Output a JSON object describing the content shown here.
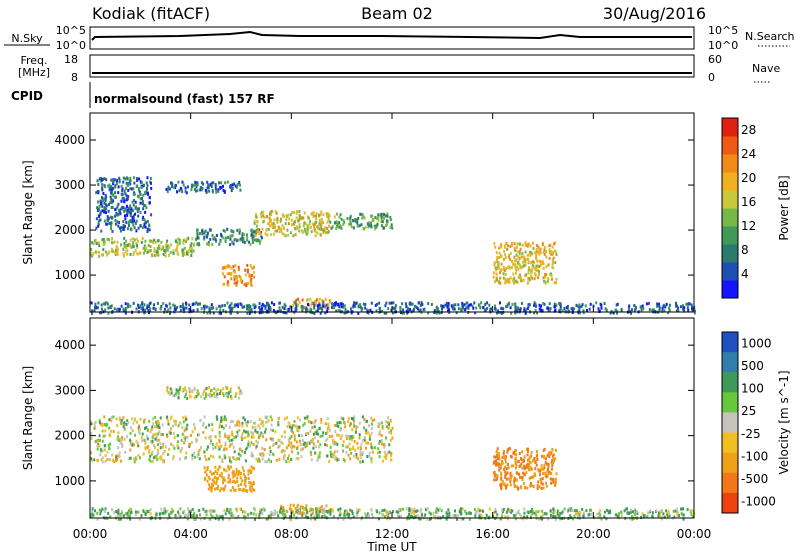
{
  "header": {
    "station": "Kodiak (fitACF)",
    "beam": "Beam 02",
    "date": "30/Aug/2016"
  },
  "top_panels": {
    "nsky_label": "N.Sky",
    "nsky_ticks": [
      "10^5",
      "10^0"
    ],
    "nsearch_label": "N.Search",
    "nsearch_ticks": [
      "10^5",
      "10^0"
    ],
    "freq_label": "Freq.",
    "freq_unit": "[MHz]",
    "freq_ticks": [
      "18",
      "8"
    ],
    "nave_label": "Nave",
    "nave_ticks": [
      "60",
      "0"
    ],
    "cpid_label": "CPID",
    "cpid_value": "normalsound (fast) 157 RF"
  },
  "chart_data": [
    {
      "type": "heatmap",
      "parameter": "power",
      "ylabel": "Slant Range [km]",
      "yticks": [
        1000,
        2000,
        3000,
        4000
      ],
      "ylim": [
        180,
        4600
      ],
      "xlabel": "Time UT",
      "xticks": [
        "00:00",
        "04:00",
        "08:00",
        "12:00",
        "16:00",
        "20:00",
        "00:00"
      ],
      "xlim_hours": [
        0,
        24
      ],
      "colorbar": {
        "label": "Power [dB]",
        "ticks": [
          "4",
          "8",
          "12",
          "16",
          "20",
          "24",
          "28"
        ],
        "range": [
          0,
          30
        ],
        "colors": [
          "#1414ff",
          "#1f4fb5",
          "#2b7a6e",
          "#3f9a5a",
          "#77b84a",
          "#c8c83a",
          "#f0b020",
          "#f28a18",
          "#ee5a14",
          "#e02010"
        ]
      },
      "regions": [
        {
          "t0": 0.0,
          "t1": 4.2,
          "r0": 1450,
          "r1": 1850,
          "power": 15
        },
        {
          "t0": 4.2,
          "t1": 6.8,
          "r0": 1700,
          "r1": 2050,
          "power": 9
        },
        {
          "t0": 6.5,
          "t1": 9.5,
          "r0": 1900,
          "r1": 2450,
          "power": 17
        },
        {
          "t0": 9.5,
          "t1": 12.0,
          "r0": 2050,
          "r1": 2400,
          "power": 11
        },
        {
          "t0": 0.2,
          "t1": 2.4,
          "r0": 2000,
          "r1": 3200,
          "power": 6
        },
        {
          "t0": 3.0,
          "t1": 6.0,
          "r0": 2850,
          "r1": 3100,
          "power": 6
        },
        {
          "t0": 5.2,
          "t1": 6.5,
          "r0": 800,
          "r1": 1250,
          "power": 22
        },
        {
          "t0": 8.0,
          "t1": 9.6,
          "r0": 300,
          "r1": 500,
          "power": 20
        },
        {
          "t0": 16.0,
          "t1": 18.5,
          "r0": 850,
          "r1": 1750,
          "power": 18
        },
        {
          "t0": 0.0,
          "t1": 24.0,
          "r0": 180,
          "r1": 420,
          "power": 6
        }
      ]
    },
    {
      "type": "heatmap",
      "parameter": "velocity",
      "ylabel": "Slant Range [km]",
      "yticks": [
        1000,
        2000,
        3000,
        4000
      ],
      "ylim": [
        180,
        4600
      ],
      "xlabel": "Time UT",
      "xticks": [
        "00:00",
        "04:00",
        "08:00",
        "12:00",
        "16:00",
        "20:00",
        "00:00"
      ],
      "xlim_hours": [
        0,
        24
      ],
      "colorbar": {
        "label": "Velocity [m s^-1]",
        "ticks": [
          "1000",
          "500",
          "100",
          "25",
          "-25",
          "-100",
          "-500",
          "-1000"
        ],
        "colors": [
          "#2050c0",
          "#2f7fa8",
          "#3f9a5a",
          "#66c83c",
          "#c4c4bc",
          "#f0c020",
          "#f0a018",
          "#f07818",
          "#ee4010"
        ]
      },
      "regions": [
        {
          "t0": 0.0,
          "t1": 12.0,
          "r0": 1450,
          "r1": 2450,
          "velocity": 0
        },
        {
          "t0": 3.0,
          "t1": 6.0,
          "r0": 2850,
          "r1": 3100,
          "velocity": 0
        },
        {
          "t0": 4.5,
          "t1": 6.5,
          "r0": 800,
          "r1": 1350,
          "velocity": -200
        },
        {
          "t0": 7.5,
          "t1": 9.6,
          "r0": 300,
          "r1": 500,
          "velocity": -150
        },
        {
          "t0": 16.0,
          "t1": 18.5,
          "r0": 850,
          "r1": 1750,
          "velocity": -300
        },
        {
          "t0": 0.0,
          "t1": 24.0,
          "r0": 180,
          "r1": 420,
          "velocity": 50
        }
      ]
    }
  ]
}
